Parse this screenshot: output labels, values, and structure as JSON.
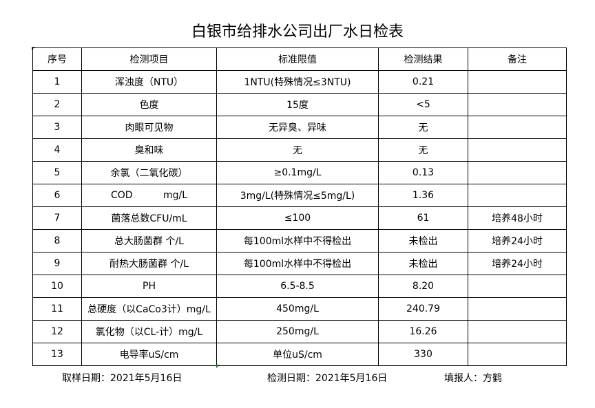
{
  "title": "白银市给排水公司出厂水日检表",
  "columns": [
    "序号",
    "检测项目",
    "标准限值",
    "检测结果",
    "备注"
  ],
  "rows": [
    [
      "1",
      "浑浊度（NTU）",
      "1NTU(特殊情况≤3NTU)",
      "0.21",
      ""
    ],
    [
      "2",
      "色度",
      "15度",
      "<5",
      ""
    ],
    [
      "3",
      "肉眼可见物",
      "无异臭、异味",
      "无",
      ""
    ],
    [
      "4",
      "臭和味",
      "无",
      "无",
      ""
    ],
    [
      "5",
      "余氯（二氧化碳）",
      "≥0.1mg/L",
      "0.13",
      ""
    ],
    [
      "6",
      "COD          mg/L",
      "3mg/L(特殊情况≤5mg/L)",
      "1.36",
      ""
    ],
    [
      "7",
      "菌落总数CFU/mL",
      "≤100",
      "61",
      "培养48小时"
    ],
    [
      "8",
      "总大肠菌群 个/L",
      "每100ml水样中不得检出",
      "未检出",
      "培养24小时"
    ],
    [
      "9",
      "耐热大肠菌群 个/L",
      "每100ml水样中不得检出",
      "未检出",
      "培养24小时"
    ],
    [
      "10",
      "PH",
      "6.5-8.5",
      "8.20",
      ""
    ],
    [
      "11",
      "总硬度（以CaCo3计）mg/L",
      "450mg/L",
      "240.79",
      ""
    ],
    [
      "12",
      "氯化物（以CL-计）mg/L",
      "250mg/L",
      "16.26",
      ""
    ],
    [
      "13",
      "电导率uS/cm",
      "单位uS/cm",
      "330",
      ""
    ]
  ],
  "footer": {
    "sampling_date": "取样日期：2021年5月16日",
    "test_date": "检测日期：2021年5月16日",
    "reporter": "填报人：方鹤"
  }
}
